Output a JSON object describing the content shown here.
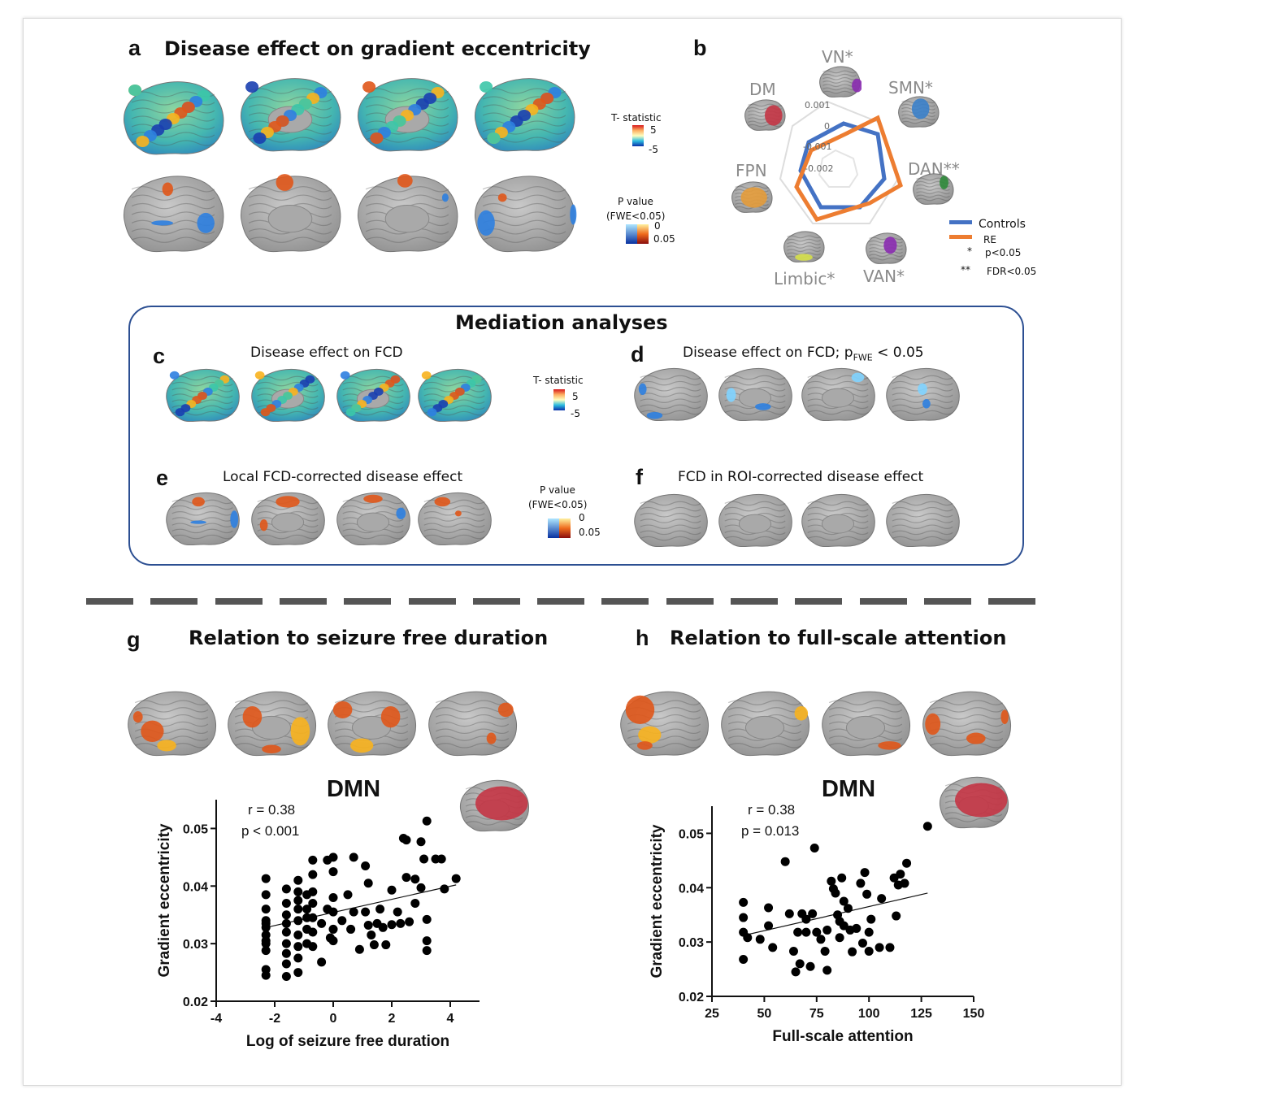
{
  "panels": {
    "a": {
      "label": "a",
      "title": "Disease effect on gradient  eccentricity",
      "tstat_label": "T- statistic",
      "tstat_max": "5",
      "tstat_min": "-5",
      "pval_label1": "P value",
      "pval_label2": "(FWE<0.05)",
      "pval_top": "0",
      "pval_bottom": "0.05"
    },
    "b": {
      "label": "b",
      "networks": [
        "VN*",
        "SMN*",
        "DAN**",
        "VAN*",
        "Limbic*",
        "FPN",
        "DM"
      ],
      "ticks": [
        "0.001",
        "0",
        "-0.001",
        "-0.002"
      ],
      "legend": {
        "controls": "Controls",
        "re": "RE",
        "star1": "*",
        "star1_text": "p<0.05",
        "star2": "**",
        "star2_text": "FDR<0.05"
      },
      "colors": {
        "controls": "#4472c4",
        "re": "#ed7d31"
      }
    },
    "mediation": {
      "title": "Mediation  analyses"
    },
    "c": {
      "label": "c",
      "title": "Disease effect on FCD",
      "tstat_label": "T- statistic",
      "tstat_max": "5",
      "tstat_min": "-5"
    },
    "d": {
      "label": "d",
      "title_main": "Disease effect on FCD; p",
      "title_sub": "FWE",
      "title_end": " < 0.05"
    },
    "e": {
      "label": "e",
      "title": "Local FCD-corrected disease effect",
      "pval_label1": "P value",
      "pval_label2": "(FWE<0.05)",
      "pval_top": "0",
      "pval_bottom": "0.05"
    },
    "f": {
      "label": "f",
      "title": "FCD in ROI-corrected disease effect"
    },
    "g": {
      "label": "g",
      "title": "Relation to seizure free duration"
    },
    "h": {
      "label": "h",
      "title": "Relation to full-scale attention"
    }
  },
  "chart_data": [
    {
      "type": "scatter",
      "panel": "g",
      "title": "DMN",
      "xlabel": "Log of seizure free duration",
      "ylabel": "Gradient eccentricity",
      "xlim": [
        -4,
        5
      ],
      "ylim": [
        0.02,
        0.055
      ],
      "xticks": [
        "-4",
        "-2",
        "0",
        "2",
        "4"
      ],
      "yticks": [
        "0.02",
        "0.03",
        "0.04",
        "0.05"
      ],
      "stat_r": "r = 0.38",
      "stat_p": "p  < 0.001",
      "trend": {
        "x": [
          -2.3,
          4.2
        ],
        "y": [
          0.0328,
          0.0402
        ]
      },
      "points": [
        [
          -2.3,
          0.0413
        ],
        [
          -2.3,
          0.0385
        ],
        [
          -2.3,
          0.036
        ],
        [
          -2.3,
          0.034
        ],
        [
          -2.3,
          0.0328
        ],
        [
          -2.3,
          0.0315
        ],
        [
          -2.3,
          0.03
        ],
        [
          -2.3,
          0.0288
        ],
        [
          -2.3,
          0.0255
        ],
        [
          -2.3,
          0.0245
        ],
        [
          -2.3,
          0.0335
        ],
        [
          -2.3,
          0.0305
        ],
        [
          -1.6,
          0.0395
        ],
        [
          -1.6,
          0.037
        ],
        [
          -1.6,
          0.035
        ],
        [
          -1.6,
          0.0335
        ],
        [
          -1.6,
          0.032
        ],
        [
          -1.6,
          0.03
        ],
        [
          -1.6,
          0.0283
        ],
        [
          -1.6,
          0.0265
        ],
        [
          -1.6,
          0.0243
        ],
        [
          -1.2,
          0.041
        ],
        [
          -1.2,
          0.039
        ],
        [
          -1.2,
          0.0375
        ],
        [
          -1.2,
          0.036
        ],
        [
          -1.2,
          0.034
        ],
        [
          -1.2,
          0.0315
        ],
        [
          -1.2,
          0.0295
        ],
        [
          -1.2,
          0.0275
        ],
        [
          -1.2,
          0.025
        ],
        [
          -0.9,
          0.0385
        ],
        [
          -0.9,
          0.036
        ],
        [
          -0.9,
          0.0345
        ],
        [
          -0.9,
          0.0325
        ],
        [
          -0.9,
          0.03
        ],
        [
          -0.7,
          0.0445
        ],
        [
          -0.7,
          0.042
        ],
        [
          -0.7,
          0.039
        ],
        [
          -0.7,
          0.037
        ],
        [
          -0.7,
          0.0345
        ],
        [
          -0.7,
          0.032
        ],
        [
          -0.7,
          0.0295
        ],
        [
          -0.4,
          0.0335
        ],
        [
          -0.4,
          0.0268
        ],
        [
          -0.2,
          0.0445
        ],
        [
          -0.2,
          0.036
        ],
        [
          -0.1,
          0.031
        ],
        [
          0.0,
          0.045
        ],
        [
          0.0,
          0.0425
        ],
        [
          0.0,
          0.038
        ],
        [
          0.0,
          0.0355
        ],
        [
          0.0,
          0.0325
        ],
        [
          0.0,
          0.0305
        ],
        [
          0.3,
          0.034
        ],
        [
          0.5,
          0.0385
        ],
        [
          0.6,
          0.0325
        ],
        [
          0.7,
          0.045
        ],
        [
          0.7,
          0.0355
        ],
        [
          0.9,
          0.029
        ],
        [
          1.1,
          0.0435
        ],
        [
          1.1,
          0.0355
        ],
        [
          1.2,
          0.0405
        ],
        [
          1.2,
          0.0332
        ],
        [
          1.3,
          0.0315
        ],
        [
          1.4,
          0.0298
        ],
        [
          1.5,
          0.0335
        ],
        [
          1.6,
          0.036
        ],
        [
          1.7,
          0.0328
        ],
        [
          1.8,
          0.0298
        ],
        [
          2.0,
          0.0393
        ],
        [
          2.0,
          0.0333
        ],
        [
          2.2,
          0.0355
        ],
        [
          2.3,
          0.0335
        ],
        [
          2.4,
          0.0483
        ],
        [
          2.5,
          0.048
        ],
        [
          2.5,
          0.0415
        ],
        [
          2.6,
          0.0338
        ],
        [
          2.8,
          0.0412
        ],
        [
          2.8,
          0.037
        ],
        [
          3.0,
          0.0477
        ],
        [
          3.0,
          0.0397
        ],
        [
          3.1,
          0.0447
        ],
        [
          3.2,
          0.0513
        ],
        [
          3.2,
          0.0342
        ],
        [
          3.2,
          0.0305
        ],
        [
          3.2,
          0.0288
        ],
        [
          3.5,
          0.0447
        ],
        [
          3.7,
          0.0447
        ],
        [
          3.8,
          0.0395
        ],
        [
          4.2,
          0.0413
        ]
      ]
    },
    {
      "type": "scatter",
      "panel": "h",
      "title": "DMN",
      "xlabel": "Full-scale attention",
      "ylabel": "Gradient eccentricity",
      "xlim": [
        25,
        150
      ],
      "ylim": [
        0.02,
        0.055
      ],
      "xticks": [
        "25",
        "50",
        "75",
        "100",
        "125",
        "150"
      ],
      "yticks": [
        "0.02",
        "0.03",
        "0.04",
        "0.05"
      ],
      "stat_r": "r = 0.38",
      "stat_p": "p = 0.013",
      "trend": {
        "x": [
          40,
          128
        ],
        "y": [
          0.0312,
          0.039
        ]
      },
      "points": [
        [
          40,
          0.0373
        ],
        [
          40,
          0.0345
        ],
        [
          40,
          0.0318
        ],
        [
          40,
          0.0268
        ],
        [
          42,
          0.0308
        ],
        [
          48,
          0.0305
        ],
        [
          52,
          0.0363
        ],
        [
          52,
          0.033
        ],
        [
          54,
          0.029
        ],
        [
          60,
          0.0448
        ],
        [
          62,
          0.0352
        ],
        [
          64,
          0.0283
        ],
        [
          65,
          0.0245
        ],
        [
          66,
          0.0318
        ],
        [
          67,
          0.026
        ],
        [
          68,
          0.0352
        ],
        [
          70,
          0.0342
        ],
        [
          70,
          0.0318
        ],
        [
          72,
          0.0255
        ],
        [
          73,
          0.0352
        ],
        [
          74,
          0.0473
        ],
        [
          75,
          0.0318
        ],
        [
          77,
          0.0305
        ],
        [
          79,
          0.0283
        ],
        [
          80,
          0.0248
        ],
        [
          80,
          0.0322
        ],
        [
          82,
          0.0412
        ],
        [
          83,
          0.0398
        ],
        [
          84,
          0.039
        ],
        [
          85,
          0.035
        ],
        [
          86,
          0.0338
        ],
        [
          86,
          0.0308
        ],
        [
          87,
          0.0418
        ],
        [
          88,
          0.0375
        ],
        [
          88,
          0.033
        ],
        [
          90,
          0.0362
        ],
        [
          91,
          0.0322
        ],
        [
          92,
          0.0282
        ],
        [
          94,
          0.0325
        ],
        [
          96,
          0.0408
        ],
        [
          97,
          0.0298
        ],
        [
          98,
          0.0428
        ],
        [
          99,
          0.0388
        ],
        [
          100,
          0.0318
        ],
        [
          100,
          0.0283
        ],
        [
          101,
          0.0342
        ],
        [
          105,
          0.029
        ],
        [
          106,
          0.038
        ],
        [
          110,
          0.029
        ],
        [
          112,
          0.0418
        ],
        [
          113,
          0.0348
        ],
        [
          114,
          0.0405
        ],
        [
          115,
          0.0425
        ],
        [
          117,
          0.0408
        ],
        [
          118,
          0.0445
        ],
        [
          128,
          0.0513
        ]
      ]
    }
  ]
}
